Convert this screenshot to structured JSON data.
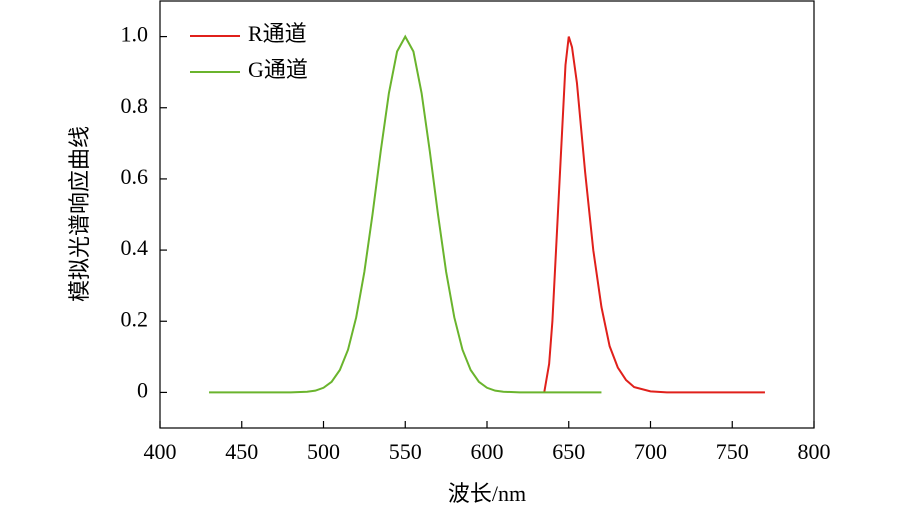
{
  "chart_data": {
    "type": "line",
    "x_label": "波长/nm",
    "y_label": "模拟光谱响应曲线",
    "xlim": [
      400,
      800
    ],
    "xticks": [
      400,
      450,
      500,
      550,
      600,
      650,
      700,
      750,
      800
    ],
    "ylim": [
      -0.1,
      1.1
    ],
    "yticks": [
      0,
      0.2,
      0.4,
      0.6,
      0.8,
      {
        "value": 1,
        "label": "1.0"
      }
    ],
    "legend": "upper left",
    "series": [
      {
        "name": "R通道",
        "color": "#e0201b",
        "x": [
          635,
          638,
          640,
          642,
          645,
          648,
          650,
          652,
          655,
          660,
          665,
          670,
          675,
          680,
          685,
          690,
          700,
          710,
          770
        ],
        "values": [
          0,
          0.08,
          0.2,
          0.38,
          0.65,
          0.92,
          1.0,
          0.97,
          0.87,
          0.62,
          0.4,
          0.24,
          0.13,
          0.07,
          0.035,
          0.015,
          0.003,
          0,
          0
        ]
      },
      {
        "name": "G通道",
        "color": "#6ab42d",
        "x": [
          430,
          450,
          470,
          480,
          490,
          495,
          500,
          505,
          510,
          515,
          520,
          525,
          530,
          535,
          540,
          545,
          550,
          555,
          560,
          565,
          570,
          575,
          580,
          585,
          590,
          595,
          600,
          605,
          610,
          620,
          630,
          650,
          670
        ],
        "values": [
          0,
          0,
          0,
          0,
          0.002,
          0.005,
          0.013,
          0.03,
          0.063,
          0.12,
          0.211,
          0.339,
          0.501,
          0.678,
          0.841,
          0.958,
          1.0,
          0.958,
          0.841,
          0.678,
          0.501,
          0.339,
          0.211,
          0.12,
          0.063,
          0.03,
          0.013,
          0.005,
          0.002,
          0,
          0,
          0,
          0
        ]
      }
    ]
  }
}
